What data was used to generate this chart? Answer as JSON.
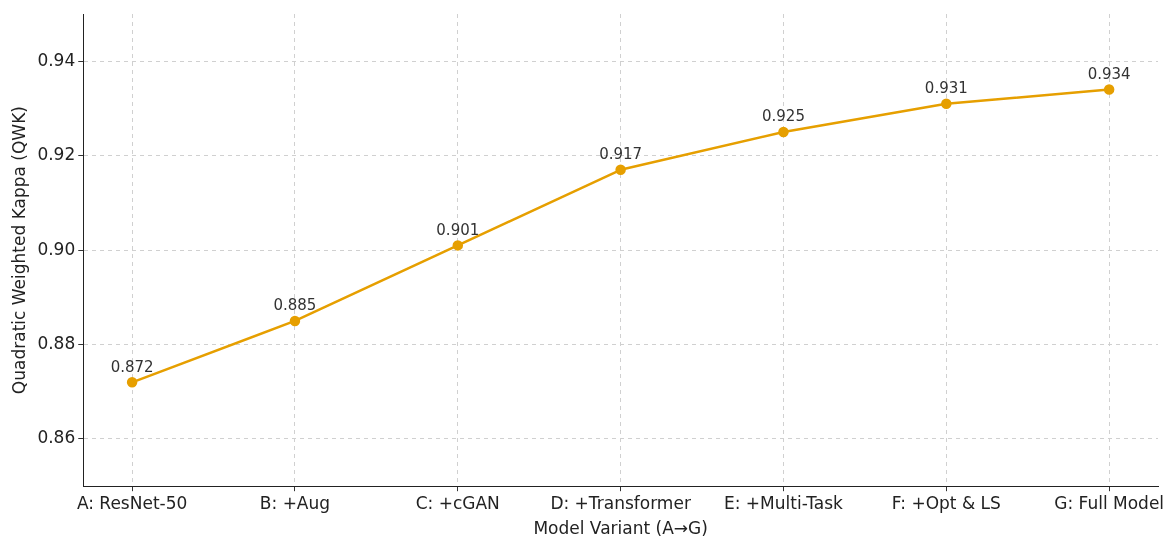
{
  "chart_data": {
    "type": "line",
    "xlabel": "Model Variant (A→G)",
    "ylabel": "Quadratic Weighted Kappa (QWK)",
    "categories": [
      "A: ResNet-50",
      "B: +Aug",
      "C: +cGAN",
      "D: +Transformer",
      "E: +Multi-Task",
      "F: +Opt & LS",
      "G: Full Model"
    ],
    "series": [
      {
        "color": "#e69f00",
        "values": [
          0.872,
          0.885,
          0.901,
          0.917,
          0.925,
          0.931,
          0.934
        ]
      }
    ],
    "ylim": [
      0.85,
      0.95
    ],
    "yticks": [
      {
        "value": 0.86,
        "label": "0.86"
      },
      {
        "value": 0.88,
        "label": "0.88"
      },
      {
        "value": 0.9,
        "label": "0.90"
      },
      {
        "value": 0.92,
        "label": "0.92"
      },
      {
        "value": 0.94,
        "label": "0.94"
      }
    ],
    "grid": true,
    "marker": "circle",
    "line_style": "solid",
    "data_labels": true,
    "legend": false
  }
}
